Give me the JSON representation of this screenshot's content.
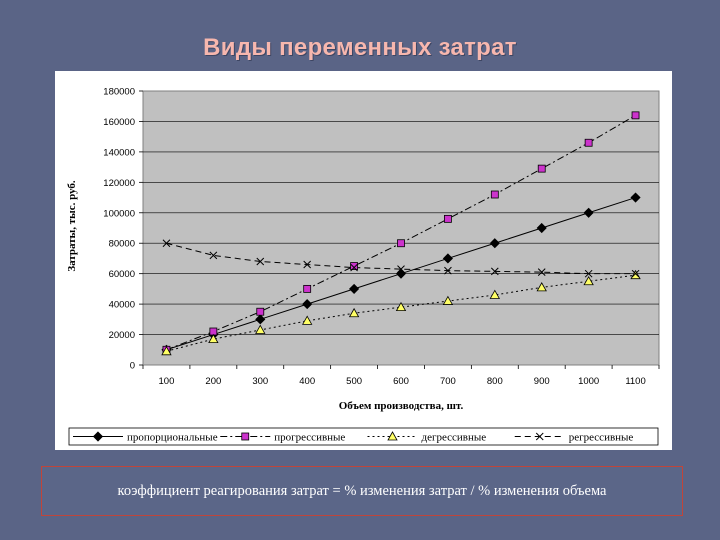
{
  "slide": {
    "title": "Виды переменных затрат",
    "formula": "коэффициент реагирования затрат = % изменения затрат / % изменения объема"
  },
  "colors": {
    "background": "#5a6486",
    "title": "#f7b7ae",
    "plot_area": "#c0c0c0",
    "formula_border": "#c0453a"
  },
  "chart_data": {
    "type": "line",
    "title": "",
    "xlabel": "Объем производства, шт.",
    "ylabel": "Затраты, тыс. руб.",
    "categories": [
      "100",
      "200",
      "300",
      "400",
      "500",
      "600",
      "700",
      "800",
      "900",
      "1000",
      "1100"
    ],
    "ylim": [
      0,
      180000
    ],
    "yticks": [
      "0",
      "20000",
      "40000",
      "60000",
      "80000",
      "100000",
      "120000",
      "140000",
      "160000",
      "180000"
    ],
    "grid": "horizontal",
    "legend_position": "bottom",
    "series": [
      {
        "name": "пропорциональные",
        "marker": "diamond",
        "dash": "solid",
        "color": "#000000",
        "marker_fill": "#000000",
        "values": [
          10000,
          20000,
          30000,
          40000,
          50000,
          60000,
          70000,
          80000,
          90000,
          100000,
          110000
        ]
      },
      {
        "name": "прогрессивные",
        "marker": "square",
        "dash": "dashdot",
        "color": "#000000",
        "marker_fill": "#cc33cc",
        "values": [
          10000,
          22000,
          35000,
          50000,
          65000,
          80000,
          96000,
          112000,
          129000,
          146000,
          164000
        ]
      },
      {
        "name": "дегрессивные",
        "marker": "triangle",
        "dash": "dotted",
        "color": "#000000",
        "marker_fill": "#ffff66",
        "values": [
          9000,
          17000,
          23000,
          29000,
          34000,
          38000,
          42000,
          46000,
          51000,
          55000,
          59000
        ]
      },
      {
        "name": "регрессивные",
        "marker": "x",
        "dash": "dashed",
        "color": "#000000",
        "marker_fill": "none",
        "values": [
          80000,
          72000,
          68000,
          66000,
          64000,
          63000,
          62000,
          61500,
          61000,
          60000,
          60000
        ]
      }
    ]
  }
}
